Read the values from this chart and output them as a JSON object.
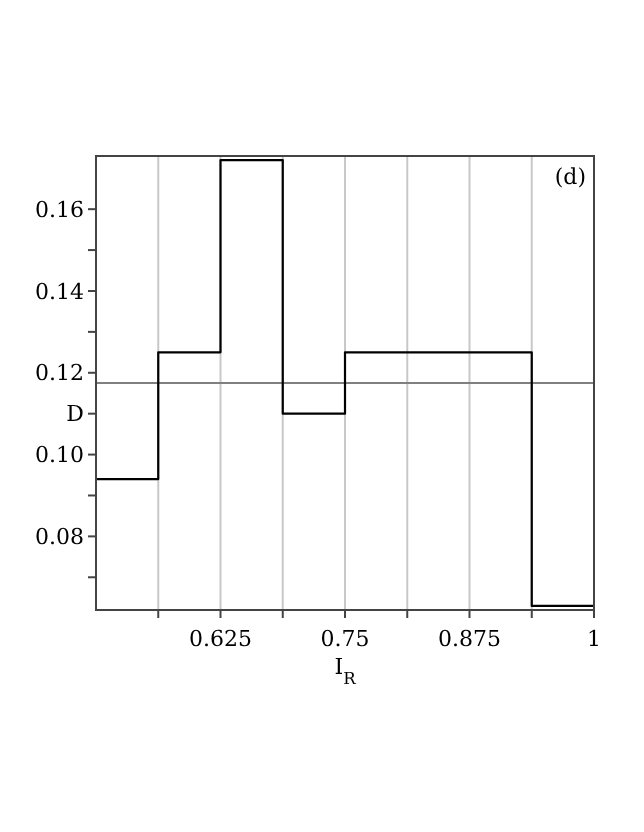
{
  "chart_data": {
    "type": "step",
    "xlabel": "I$_{R}$",
    "annotations": [
      "(d)"
    ],
    "x": [
      0.5,
      0.5625,
      0.625,
      0.6875,
      0.75,
      0.9375,
      1
    ],
    "series": [
      {
        "color": "#000000",
        "values": [
          0.094,
          0.125,
          0.172,
          0.11,
          0.125,
          0.063,
          0.063
        ]
      }
    ],
    "xlim": [
      0.5,
      1
    ],
    "xticks": [
      {
        "value": 0.5625,
        "label": null
      },
      0.625,
      {
        "value": 0.6875,
        "label": null
      },
      0.75,
      {
        "value": 0.8125,
        "label": null
      },
      0.875,
      {
        "value": 0.9375,
        "label": null
      },
      1
    ],
    "ylim": [
      0.062,
      0.173
    ],
    "yticks": [
      {
        "value": 0.07,
        "label": null
      },
      0.08,
      {
        "value": 0.09,
        "label": null
      },
      {
        "value": 0.1,
        "label": "0.10"
      },
      {
        "value": 0.11,
        "label": "D"
      },
      0.12,
      {
        "value": 0.13,
        "label": null
      },
      0.14,
      {
        "value": 0.15,
        "label": null
      },
      0.16
    ],
    "ref_lines": [
      {
        "axis": "y",
        "value": 0.1175,
        "color": "#808080"
      }
    ],
    "grid": "x",
    "line_style": "solid"
  }
}
